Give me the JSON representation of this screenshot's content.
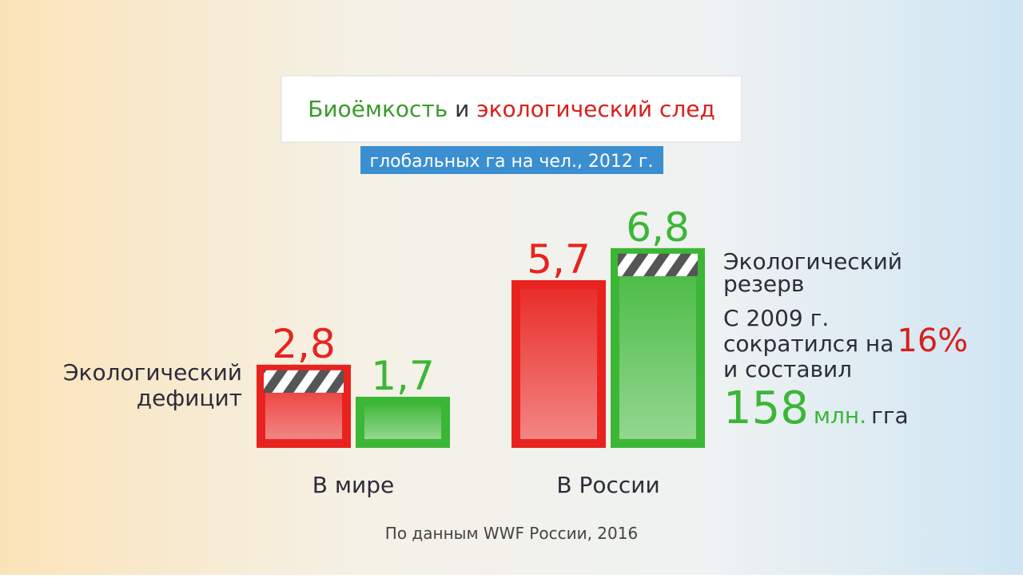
{
  "chart_data": {
    "type": "bar",
    "title": [
      "Биоёмкость",
      "и",
      "экологический след"
    ],
    "subtitle": "глобальных га на чел., 2012 г.",
    "categories": [
      "В мире",
      "В России"
    ],
    "series": [
      {
        "color": "#e8231f",
        "values": [
          2.8,
          5.7
        ],
        "value_labels": [
          "2,8",
          "5,7"
        ]
      },
      {
        "color": "#3cb636",
        "values": [
          1.7,
          6.8
        ],
        "value_labels": [
          "1,7",
          "6,8"
        ]
      }
    ],
    "annotations": {
      "deficit": [
        "Экологический",
        "дефицит"
      ],
      "reserve": [
        "Экологический",
        "резерв"
      ],
      "change": [
        "С 2009 г.",
        "сократился на",
        "16%",
        "и составил",
        "158",
        "млн.",
        "гга"
      ]
    },
    "source": "По данным WWF России, 2016"
  }
}
